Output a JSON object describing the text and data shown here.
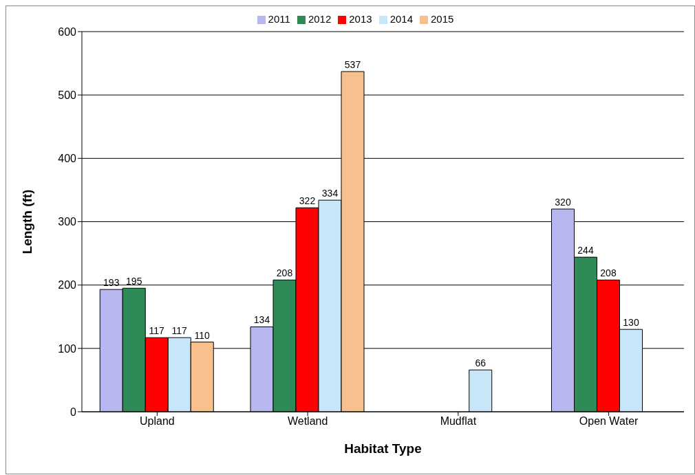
{
  "chart_data": {
    "type": "bar",
    "xlabel": "Habitat Type",
    "ylabel": "Length (ft)",
    "categories": [
      "Upland",
      "Wetland",
      "Mudflat",
      "Open Water"
    ],
    "series": [
      {
        "name": "2011",
        "color": "#b8b8f0",
        "values": [
          193,
          134,
          null,
          320
        ]
      },
      {
        "name": "2012",
        "color": "#2e8b57",
        "values": [
          195,
          208,
          null,
          244
        ]
      },
      {
        "name": "2013",
        "color": "#ff0000",
        "values": [
          117,
          322,
          null,
          208
        ]
      },
      {
        "name": "2014",
        "color": "#c8e6f8",
        "values": [
          117,
          334,
          66,
          130
        ]
      },
      {
        "name": "2015",
        "color": "#f8c08c",
        "values": [
          110,
          537,
          null,
          null
        ]
      }
    ],
    "ylim": [
      0,
      600
    ],
    "yticks": [
      0,
      100,
      200,
      300,
      400,
      500,
      600
    ],
    "grid": "y",
    "legend": "top",
    "data_labels": true
  }
}
